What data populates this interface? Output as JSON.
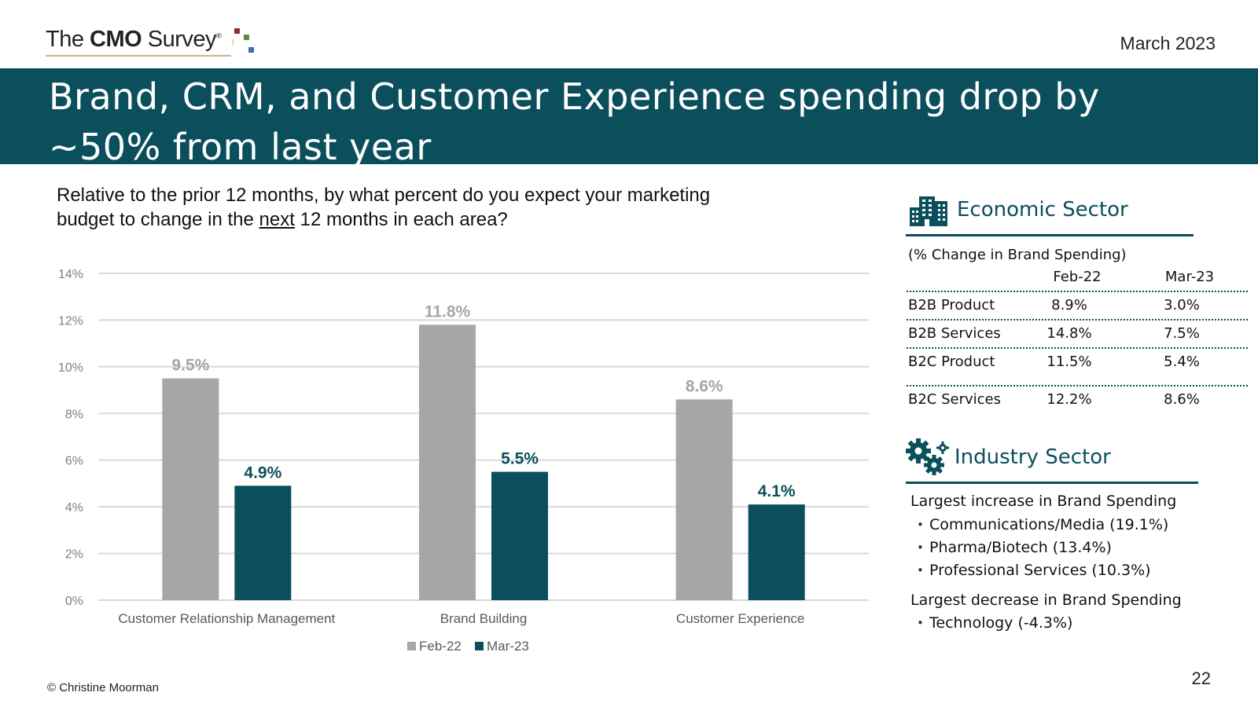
{
  "header": {
    "logo": {
      "the": "The",
      "cmo": "CMO",
      "survey": "Survey",
      "reg": "®"
    },
    "date": "March 2023",
    "title_line1": "Brand, CRM, and Customer Experience spending drop by",
    "title_line2": "~50% from last year"
  },
  "question": {
    "line1": "Relative to the prior 12 months, by what percent do you expect your marketing",
    "line2_pre": "budget to change in the ",
    "line2_underlined": "next",
    "line2_post": " 12 months in each area?"
  },
  "colors": {
    "brand": "#0b4f5c",
    "feb": "#a6a6a6",
    "mar": "#0b4f5c",
    "grid": "#d9d9d9",
    "axis_text": "#7f7f7f",
    "logo_squares": [
      "#8b2e2e",
      "#e8a33d",
      "#5e8c3a",
      "#3b6fb6"
    ]
  },
  "chart_data": {
    "type": "bar",
    "categories": [
      "Customer Relationship Management",
      "Brand Building",
      "Customer Experience"
    ],
    "series": [
      {
        "name": "Feb-22",
        "values": [
          9.5,
          11.8,
          8.6
        ],
        "labels": [
          "9.5%",
          "11.8%",
          "8.6%"
        ]
      },
      {
        "name": "Mar-23",
        "values": [
          4.9,
          5.5,
          4.1
        ],
        "labels": [
          "4.9%",
          "5.5%",
          "4.1%"
        ]
      }
    ],
    "ylim": [
      0,
      14
    ],
    "yticks": [
      "0%",
      "2%",
      "4%",
      "6%",
      "8%",
      "10%",
      "12%",
      "14%"
    ],
    "grid": true,
    "legend": "bottom",
    "title": "",
    "xlabel": "",
    "ylabel": ""
  },
  "economic": {
    "title": "Economic Sector",
    "icon": "buildings-icon",
    "subtitle": "(% Change in Brand Spending)",
    "columns": [
      "Feb-22",
      "Mar-23"
    ],
    "rows": [
      {
        "label": "B2B Product",
        "feb": "8.9%",
        "mar": "3.0%"
      },
      {
        "label": "B2B Services",
        "feb": "14.8%",
        "mar": "7.5%"
      },
      {
        "label": "B2C Product",
        "feb": "11.5%",
        "mar": "5.4%"
      },
      {
        "label": "B2C Services",
        "feb": "12.2%",
        "mar": "8.6%"
      }
    ]
  },
  "industry": {
    "title": "Industry Sector",
    "icon": "gears-icon",
    "increase_heading": "Largest increase in Brand Spending",
    "increase_items": [
      "Communications/Media (19.1%)",
      "Pharma/Biotech (13.4%)",
      "Professional Services (10.3%)"
    ],
    "decrease_heading": "Largest decrease in Brand Spending",
    "decrease_items": [
      "Technology (-4.3%)"
    ]
  },
  "footer": {
    "copyright": "© Christine Moorman",
    "page_number": "22"
  }
}
